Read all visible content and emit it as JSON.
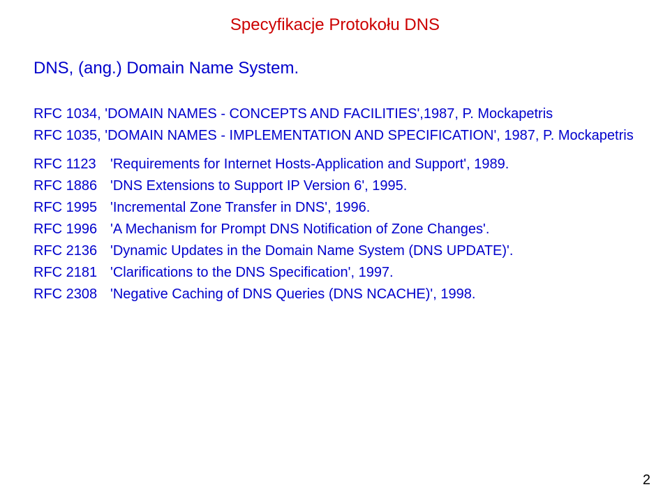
{
  "colors": {
    "title": "#cc0000",
    "body": "#0000cc",
    "pageNumber": "#000000",
    "background": "#ffffff"
  },
  "title": "Specyfikacje Protokołu DNS",
  "subtitle": "DNS, (ang.) Domain Name System.",
  "intro_lines": [
    "RFC 1034, 'DOMAIN NAMES - CONCEPTS AND FACILITIES',1987, P. Mockapetris",
    "RFC 1035, 'DOMAIN NAMES - IMPLEMENTATION AND SPECIFICATION', 1987, P. Mockapetris"
  ],
  "rfc_entries": [
    {
      "num": "RFC 1123",
      "desc": "'Requirements for Internet Hosts-Application and Support', 1989."
    },
    {
      "num": "RFC 1886",
      "desc": "'DNS Extensions to Support IP Version 6', 1995."
    },
    {
      "num": "RFC 1995",
      "desc": "'Incremental Zone Transfer in DNS', 1996."
    },
    {
      "num": "RFC 1996",
      "desc": "'A Mechanism for Prompt DNS Notification of Zone Changes'."
    },
    {
      "num": "RFC 2136",
      "desc": "'Dynamic Updates in the Domain Name System (DNS UPDATE)'."
    },
    {
      "num": "RFC 2181",
      "desc": "'Clarifications to the DNS Specification', 1997."
    },
    {
      "num": "RFC 2308",
      "desc": "'Negative Caching of DNS Queries (DNS NCACHE)', 1998."
    }
  ],
  "page_number": "2"
}
